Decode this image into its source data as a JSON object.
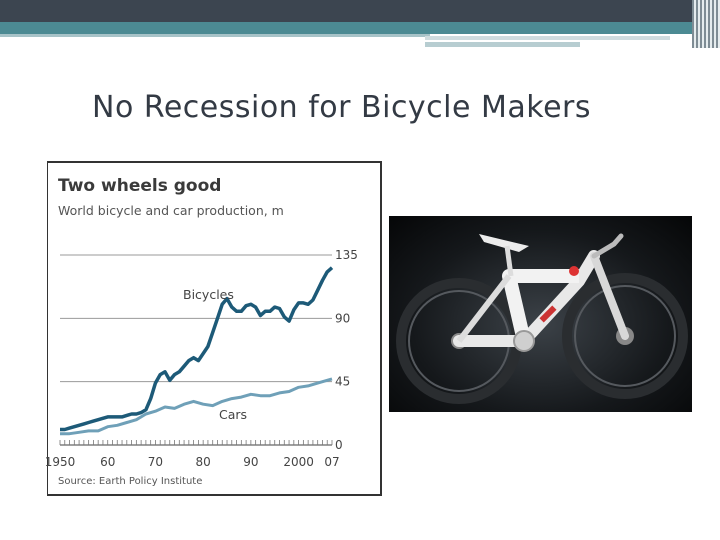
{
  "slide": {
    "title": "No Recession for Bicycle Makers"
  },
  "colors": {
    "bicycles": "#1d5a78",
    "cars": "#6fa0b8",
    "header_dark": "#3c4550",
    "header_teal": "#4c8a93"
  },
  "image": {
    "subject": "bicycle-photo"
  },
  "chart_data": {
    "type": "line",
    "title": "Two wheels good",
    "subtitle": "World bicycle and car production, m",
    "source": "Source: Earth Policy Institute",
    "x_tick_labels": [
      "1950",
      "60",
      "70",
      "80",
      "90",
      "2000",
      "07"
    ],
    "x_ticks": [
      1950,
      1960,
      1970,
      1980,
      1990,
      2000,
      2007
    ],
    "y_ticks": [
      0,
      45,
      90,
      135
    ],
    "y_tick_labels": [
      "0",
      "45",
      "90",
      "135"
    ],
    "xlim": [
      1950,
      2007
    ],
    "ylim": [
      0,
      135
    ],
    "grid": true,
    "y_axis_side": "right",
    "series": [
      {
        "name": "Bicycles",
        "x": [
          1950,
          1951,
          1952,
          1953,
          1954,
          1955,
          1956,
          1957,
          1958,
          1959,
          1960,
          1961,
          1962,
          1963,
          1964,
          1965,
          1966,
          1967,
          1968,
          1969,
          1970,
          1971,
          1972,
          1973,
          1974,
          1975,
          1976,
          1977,
          1978,
          1979,
          1980,
          1981,
          1982,
          1983,
          1984,
          1985,
          1986,
          1987,
          1988,
          1989,
          1990,
          1991,
          1992,
          1993,
          1994,
          1995,
          1996,
          1997,
          1998,
          1999,
          2000,
          2001,
          2002,
          2003,
          2004,
          2005,
          2006,
          2007
        ],
        "values": [
          11,
          11,
          12,
          13,
          14,
          15,
          16,
          17,
          18,
          19,
          20,
          20,
          20,
          20,
          21,
          22,
          22,
          23,
          25,
          33,
          44,
          50,
          52,
          46,
          50,
          52,
          56,
          60,
          62,
          60,
          65,
          70,
          80,
          90,
          100,
          104,
          98,
          95,
          95,
          99,
          100,
          98,
          92,
          95,
          95,
          98,
          97,
          91,
          88,
          96,
          101,
          101,
          100,
          103,
          110,
          117,
          123,
          126
        ]
      },
      {
        "name": "Cars",
        "x": [
          1950,
          1952,
          1954,
          1956,
          1958,
          1960,
          1962,
          1964,
          1966,
          1968,
          1970,
          1972,
          1974,
          1976,
          1978,
          1980,
          1982,
          1984,
          1986,
          1988,
          1990,
          1992,
          1994,
          1996,
          1998,
          2000,
          2002,
          2004,
          2006,
          2007
        ],
        "values": [
          8,
          8,
          9,
          10,
          10,
          13,
          14,
          16,
          18,
          22,
          24,
          27,
          26,
          29,
          31,
          29,
          28,
          31,
          33,
          34,
          36,
          35,
          35,
          37,
          38,
          41,
          42,
          44,
          46,
          47
        ]
      }
    ]
  }
}
